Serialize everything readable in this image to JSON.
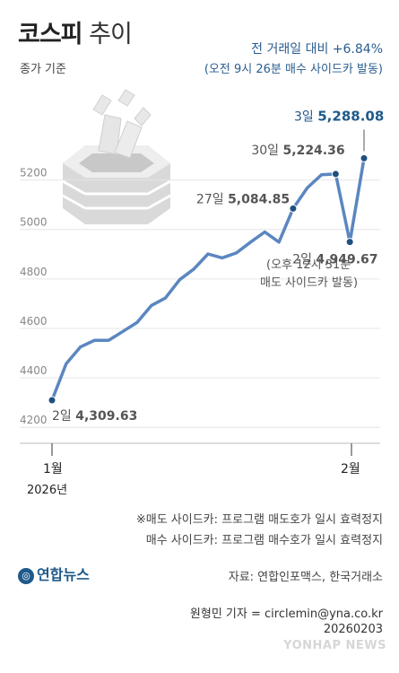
{
  "header": {
    "title_bold": "코스피",
    "title_light": "추이",
    "subtitle": "종가 기준",
    "highlight_line1": "전 거래일 대비 +6.84%",
    "highlight_line2": "(오전 9시 26분 매수 사이드카 발동)"
  },
  "chart_data": {
    "type": "line",
    "title": "코스피 추이",
    "subtitle": "종가 기준",
    "ylim": [
      4150,
      5420
    ],
    "yticks": [
      4200,
      4400,
      4600,
      4800,
      5000,
      5200
    ],
    "line_color": "#5b86c0",
    "points": [
      4309.63,
      4457,
      4525,
      4552,
      4552,
      4588,
      4624,
      4692,
      4723,
      4797,
      4840,
      4901,
      4885,
      4905,
      4949,
      4990,
      4949,
      5084.85,
      5168,
      5221,
      5224.36,
      4949.67,
      5288.08
    ],
    "x_ticks": [
      {
        "label": "1월",
        "sub": "2026년",
        "index": 0
      },
      {
        "label": "2월",
        "index": 22
      }
    ],
    "labels": [
      {
        "index": 0,
        "day": "2일",
        "value": "4,309.63"
      },
      {
        "index": 17,
        "day": "27일",
        "value": "5,084.85"
      },
      {
        "index": 20,
        "day": "30일",
        "value": "5,224.36"
      },
      {
        "index": 21,
        "day": "2일",
        "value": "4,949.67"
      },
      {
        "index": 22,
        "day": "3일",
        "value": "5,288.08"
      }
    ]
  },
  "annotation_feb2": {
    "line1": "(오후 12시 31분",
    "line2": "매도 사이드카 발동)"
  },
  "notes": {
    "line1": "※매도 사이드카: 프로그램 매도호가 일시 효력정지",
    "line2": "매수 사이드카: 프로그램 매수호가 일시 효력정지"
  },
  "footer": {
    "logo_text": "연합뉴스",
    "source": "자료: 연합인포맥스, 한국거래소",
    "reporter": "원형민 기자 = circlemin@yna.co.kr",
    "date": "20260203",
    "watermark": "YONHAP NEWS"
  },
  "colors": {
    "line": "#5b86c0",
    "marker": "#1f4f7f",
    "highlight": "#1f5a8a"
  }
}
